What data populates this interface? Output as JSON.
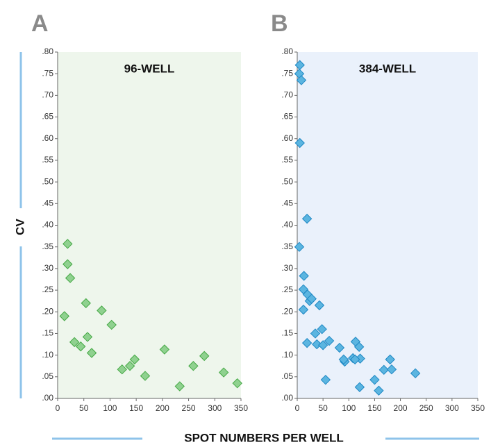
{
  "ylabel": "CV",
  "xlabel": "SPOT NUMBERS PER WELL",
  "chart_data": [
    {
      "type": "scatter",
      "label": "A",
      "title": "96-WELL",
      "color": "#8fd18f",
      "edge_color": "#45a845",
      "background": "#eef6ec",
      "x": [
        13,
        19,
        19,
        24,
        32,
        44,
        54,
        57,
        65,
        84,
        103,
        123,
        138,
        147,
        167,
        204,
        233,
        259,
        280,
        317,
        343
      ],
      "values": [
        0.19,
        0.357,
        0.31,
        0.278,
        0.13,
        0.12,
        0.22,
        0.142,
        0.105,
        0.203,
        0.17,
        0.067,
        0.075,
        0.09,
        0.052,
        0.113,
        0.028,
        0.075,
        0.098,
        0.06,
        0.035
      ],
      "xlim": [
        0,
        350
      ],
      "xticks": [
        0,
        50,
        100,
        150,
        200,
        250,
        300,
        350
      ],
      "ylim": [
        0,
        0.8
      ],
      "yticks": [
        {
          "value": 0,
          "label": ".00"
        },
        {
          "value": 0.05,
          "label": ".05"
        },
        {
          "value": 0.1,
          "label": ".10"
        },
        {
          "value": 0.15,
          "label": ".15"
        },
        {
          "value": 0.2,
          "label": ".20"
        },
        {
          "value": 0.25,
          "label": ".25"
        },
        {
          "value": 0.3,
          "label": ".30"
        },
        {
          "value": 0.35,
          "label": ".35"
        },
        {
          "value": 0.4,
          "label": ".40"
        },
        {
          "value": 0.45,
          "label": ".45"
        },
        {
          "value": 0.5,
          "label": ".50"
        },
        {
          "value": 0.55,
          "label": ".55"
        },
        {
          "value": 0.6,
          "label": ".60"
        },
        {
          "value": 0.65,
          "label": ".65"
        },
        {
          "value": 0.7,
          "label": ".70"
        },
        {
          "value": 0.75,
          "label": ".75"
        },
        {
          "value": 0.8,
          "label": ".80"
        }
      ]
    },
    {
      "type": "scatter",
      "label": "B",
      "title": "384-WELL",
      "color": "#5bb5e0",
      "edge_color": "#1f88c4",
      "background": "#eaf1fb",
      "x": [
        5,
        4,
        8,
        5,
        4,
        19,
        13,
        12,
        12,
        20,
        24,
        28,
        43,
        19,
        35,
        48,
        38,
        50,
        62,
        82,
        55,
        92,
        90,
        108,
        113,
        120,
        122,
        112,
        121,
        150,
        158,
        168,
        180,
        183,
        229
      ],
      "values": [
        0.77,
        0.75,
        0.735,
        0.59,
        0.35,
        0.415,
        0.283,
        0.252,
        0.205,
        0.24,
        0.225,
        0.23,
        0.215,
        0.128,
        0.15,
        0.16,
        0.125,
        0.123,
        0.133,
        0.117,
        0.043,
        0.085,
        0.09,
        0.093,
        0.131,
        0.119,
        0.092,
        0.09,
        0.026,
        0.043,
        0.018,
        0.066,
        0.09,
        0.067,
        0.058
      ],
      "xlim": [
        0,
        350
      ],
      "xticks": [
        0,
        50,
        100,
        150,
        200,
        250,
        300,
        350
      ],
      "ylim": [
        0,
        0.8
      ],
      "yticks": [
        {
          "value": 0,
          "label": ".00"
        },
        {
          "value": 0.05,
          "label": ".05"
        },
        {
          "value": 0.1,
          "label": ".10"
        },
        {
          "value": 0.15,
          "label": ".15"
        },
        {
          "value": 0.2,
          "label": ".20"
        },
        {
          "value": 0.25,
          "label": ".25"
        },
        {
          "value": 0.3,
          "label": ".30"
        },
        {
          "value": 0.35,
          "label": ".35"
        },
        {
          "value": 0.4,
          "label": ".40"
        },
        {
          "value": 0.45,
          "label": ".45"
        },
        {
          "value": 0.5,
          "label": ".50"
        },
        {
          "value": 0.55,
          "label": ".55"
        },
        {
          "value": 0.6,
          "label": ".60"
        },
        {
          "value": 0.65,
          "label": ".65"
        },
        {
          "value": 0.7,
          "label": ".70"
        },
        {
          "value": 0.75,
          "label": ".75"
        },
        {
          "value": 0.8,
          "label": ".80"
        }
      ]
    }
  ]
}
